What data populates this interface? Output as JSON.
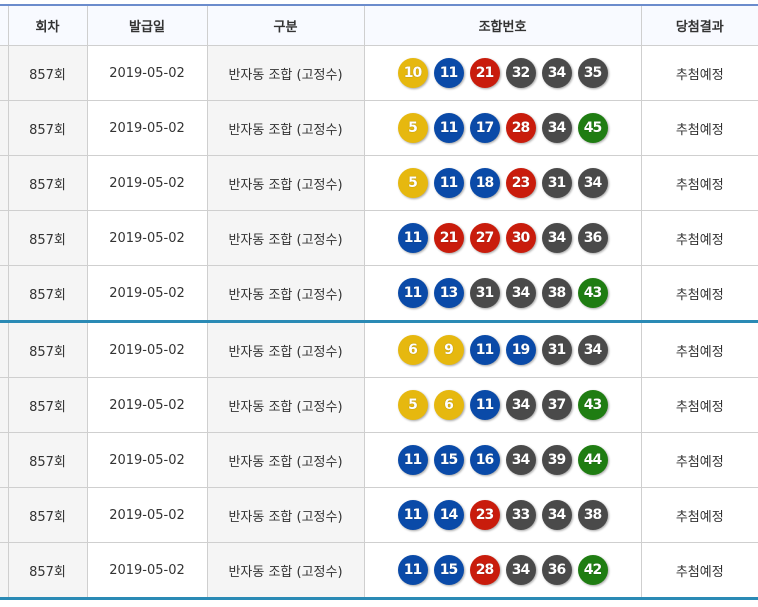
{
  "headers": [
    "회차",
    "발급일",
    "구분",
    "조합번호",
    "당첨결과"
  ],
  "ball_colors": {
    "yellow": "#e6b80f",
    "blue": "#0a4aa8",
    "red": "#c91c0c",
    "grey": "#4a4a4a",
    "green": "#1f7d12"
  },
  "rows": [
    {
      "round": "857회",
      "date": "2019-05-02",
      "type": "반자동 조합 (고정수)",
      "numbers": [
        10,
        11,
        21,
        32,
        34,
        35
      ],
      "result": "추첨예정"
    },
    {
      "round": "857회",
      "date": "2019-05-02",
      "type": "반자동 조합 (고정수)",
      "numbers": [
        5,
        11,
        17,
        28,
        34,
        45
      ],
      "result": "추첨예정"
    },
    {
      "round": "857회",
      "date": "2019-05-02",
      "type": "반자동 조합 (고정수)",
      "numbers": [
        5,
        11,
        18,
        23,
        31,
        34
      ],
      "result": "추첨예정"
    },
    {
      "round": "857회",
      "date": "2019-05-02",
      "type": "반자동 조합 (고정수)",
      "numbers": [
        11,
        21,
        27,
        30,
        34,
        36
      ],
      "result": "추첨예정"
    },
    {
      "round": "857회",
      "date": "2019-05-02",
      "type": "반자동 조합 (고정수)",
      "numbers": [
        11,
        13,
        31,
        34,
        38,
        43
      ],
      "result": "추첨예정"
    },
    {
      "round": "857회",
      "date": "2019-05-02",
      "type": "반자동 조합 (고정수)",
      "numbers": [
        6,
        9,
        11,
        19,
        31,
        34
      ],
      "result": "추첨예정"
    },
    {
      "round": "857회",
      "date": "2019-05-02",
      "type": "반자동 조합 (고정수)",
      "numbers": [
        5,
        6,
        11,
        34,
        37,
        43
      ],
      "result": "추첨예정"
    },
    {
      "round": "857회",
      "date": "2019-05-02",
      "type": "반자동 조합 (고정수)",
      "numbers": [
        11,
        15,
        16,
        34,
        39,
        44
      ],
      "result": "추첨예정"
    },
    {
      "round": "857회",
      "date": "2019-05-02",
      "type": "반자동 조합 (고정수)",
      "numbers": [
        11,
        14,
        23,
        33,
        34,
        38
      ],
      "result": "추첨예정"
    },
    {
      "round": "857회",
      "date": "2019-05-02",
      "type": "반자동 조합 (고정수)",
      "numbers": [
        11,
        15,
        28,
        34,
        36,
        42
      ],
      "result": "추첨예정"
    }
  ]
}
